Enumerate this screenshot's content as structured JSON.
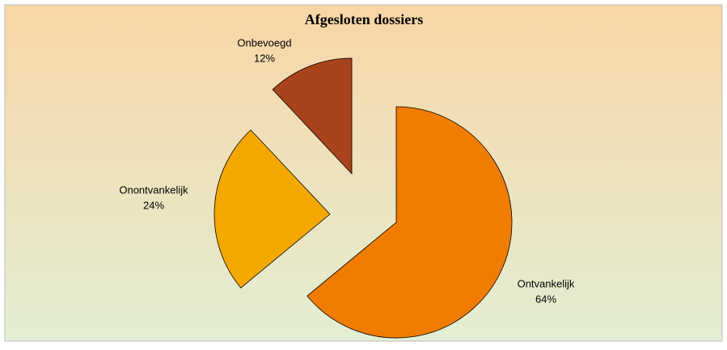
{
  "chart_data": {
    "type": "pie",
    "title": "Afgesloten dossiers",
    "categories": [
      "Ontvankelijk",
      "Onontvankelijk",
      "Onbevoegd"
    ],
    "values": [
      64,
      24,
      12
    ],
    "value_labels": [
      "64%",
      "24%",
      "12%"
    ],
    "colors": [
      "#f07c00",
      "#f5a800",
      "#a9431c"
    ]
  }
}
